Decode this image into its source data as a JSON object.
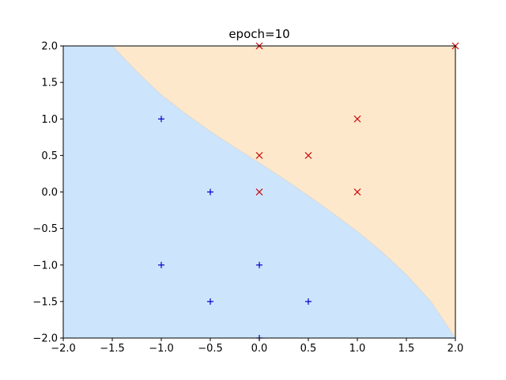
{
  "chart_data": {
    "type": "scatter",
    "title": "epoch=10",
    "xlabel": "",
    "ylabel": "",
    "xlim": [
      -2.0,
      2.0
    ],
    "ylim": [
      -2.0,
      2.0
    ],
    "x_ticks": [
      "−2.0",
      "−1.5",
      "−1.0",
      "−0.5",
      "0.0",
      "0.5",
      "1.0",
      "1.5",
      "2.0"
    ],
    "x_tick_values": [
      -2.0,
      -1.5,
      -1.0,
      -0.5,
      0.0,
      0.5,
      1.0,
      1.5,
      2.0
    ],
    "y_ticks": [
      "−2.0",
      "−1.5",
      "−1.0",
      "−0.5",
      "0.0",
      "0.5",
      "1.0",
      "1.5",
      "2.0"
    ],
    "y_tick_values": [
      -2.0,
      -1.5,
      -1.0,
      -0.5,
      0.0,
      0.5,
      1.0,
      1.5,
      2.0
    ],
    "grid": false,
    "region_colors": {
      "lower_left": "#cce4fc",
      "upper_right": "#fde8cc"
    },
    "decision_boundary": [
      [
        -1.5,
        2.0
      ],
      [
        -1.25,
        1.65
      ],
      [
        -1.0,
        1.33
      ],
      [
        -0.75,
        1.07
      ],
      [
        -0.5,
        0.83
      ],
      [
        -0.25,
        0.61
      ],
      [
        0.0,
        0.4
      ],
      [
        0.25,
        0.18
      ],
      [
        0.5,
        -0.05
      ],
      [
        0.75,
        -0.29
      ],
      [
        1.0,
        -0.54
      ],
      [
        1.25,
        -0.82
      ],
      [
        1.5,
        -1.13
      ],
      [
        1.75,
        -1.5
      ],
      [
        2.0,
        -2.0
      ]
    ],
    "series": [
      {
        "marker": "plus",
        "color": "#0000cc",
        "points": [
          [
            -1.0,
            1.0
          ],
          [
            -0.5,
            0.0
          ],
          [
            -1.0,
            -1.0
          ],
          [
            0.0,
            -1.0
          ],
          [
            -0.5,
            -1.5
          ],
          [
            0.5,
            -1.5
          ],
          [
            0.0,
            -2.0
          ]
        ]
      },
      {
        "marker": "cross",
        "color": "#cc0000",
        "points": [
          [
            0.0,
            2.0
          ],
          [
            2.0,
            2.0
          ],
          [
            1.0,
            1.0
          ],
          [
            0.0,
            0.5
          ],
          [
            0.5,
            0.5
          ],
          [
            0.0,
            0.0
          ],
          [
            1.0,
            0.0
          ]
        ]
      }
    ]
  }
}
